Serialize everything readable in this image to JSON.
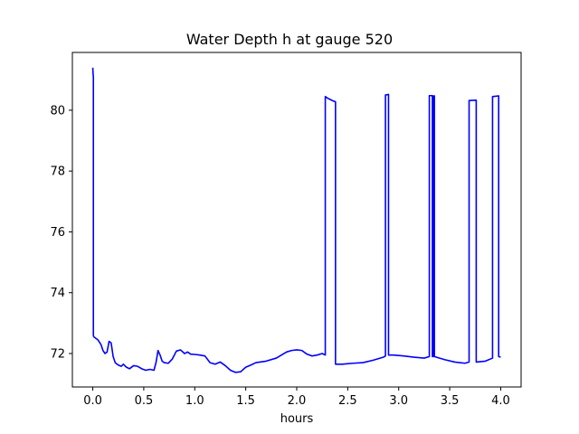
{
  "chart_data": {
    "type": "line",
    "title": "Water Depth h at gauge 520",
    "xlabel": "hours",
    "ylabel": "",
    "xlim": [
      -0.2,
      4.2
    ],
    "ylim": [
      70.9,
      81.9
    ],
    "x_ticks": [
      0.0,
      0.5,
      1.0,
      1.5,
      2.0,
      2.5,
      3.0,
      3.5,
      4.0
    ],
    "x_tick_labels": [
      "0.0",
      "0.5",
      "1.0",
      "1.5",
      "2.0",
      "2.5",
      "3.0",
      "3.5",
      "4.0"
    ],
    "y_ticks": [
      72,
      74,
      76,
      78,
      80
    ],
    "y_tick_labels": [
      "72",
      "74",
      "76",
      "78",
      "80"
    ],
    "grid": false,
    "series": [
      {
        "color": "#0000ff",
        "x": [
          0.0,
          0.003,
          0.006,
          0.006,
          0.01,
          0.05,
          0.08,
          0.1,
          0.12,
          0.14,
          0.16,
          0.18,
          0.2,
          0.22,
          0.25,
          0.28,
          0.3,
          0.33,
          0.36,
          0.4,
          0.44,
          0.48,
          0.52,
          0.56,
          0.6,
          0.62,
          0.64,
          0.66,
          0.68,
          0.7,
          0.74,
          0.78,
          0.82,
          0.86,
          0.9,
          0.93,
          0.96,
          1.0,
          1.05,
          1.1,
          1.15,
          1.2,
          1.25,
          1.3,
          1.35,
          1.4,
          1.45,
          1.5,
          1.55,
          1.6,
          1.7,
          1.8,
          1.85,
          1.9,
          1.95,
          2.0,
          2.05,
          2.1,
          2.15,
          2.2,
          2.25,
          2.28,
          2.28,
          2.3,
          2.33,
          2.36,
          2.38,
          2.38,
          2.45,
          2.55,
          2.65,
          2.75,
          2.85,
          2.87,
          2.87,
          2.9,
          2.9,
          2.95,
          3.05,
          3.15,
          3.25,
          3.3,
          3.3,
          3.33,
          3.33,
          3.34,
          3.34,
          3.35,
          3.35,
          3.45,
          3.55,
          3.65,
          3.69,
          3.69,
          3.76,
          3.76,
          3.85,
          3.92,
          3.92,
          3.98,
          3.98,
          4.0
        ],
        "y": [
          81.4,
          81.2,
          81.1,
          72.6,
          72.55,
          72.45,
          72.3,
          72.1,
          72.0,
          72.05,
          72.4,
          72.35,
          71.9,
          71.7,
          71.62,
          71.58,
          71.65,
          71.55,
          71.5,
          71.6,
          71.58,
          71.5,
          71.45,
          71.48,
          71.45,
          71.7,
          72.1,
          71.95,
          71.75,
          71.7,
          71.68,
          71.82,
          72.08,
          72.12,
          72.0,
          72.05,
          71.98,
          71.97,
          71.95,
          71.92,
          71.7,
          71.65,
          71.72,
          71.6,
          71.45,
          71.38,
          71.4,
          71.55,
          71.62,
          71.7,
          71.75,
          71.85,
          71.95,
          72.05,
          72.1,
          72.12,
          72.1,
          71.98,
          71.92,
          71.95,
          72.0,
          71.95,
          80.45,
          80.4,
          80.35,
          80.3,
          80.28,
          71.65,
          71.65,
          71.68,
          71.7,
          71.78,
          71.88,
          71.92,
          80.5,
          80.52,
          71.95,
          71.95,
          71.92,
          71.88,
          71.85,
          71.9,
          80.48,
          80.48,
          71.9,
          71.9,
          80.47,
          80.47,
          71.9,
          71.8,
          71.72,
          71.68,
          71.72,
          80.32,
          80.33,
          71.72,
          71.75,
          71.85,
          80.45,
          80.47,
          71.9,
          71.88
        ]
      }
    ]
  }
}
